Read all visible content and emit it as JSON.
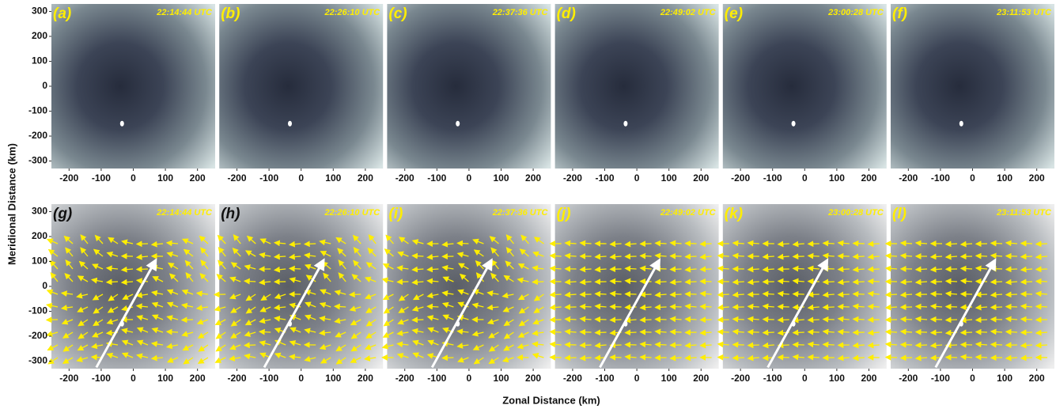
{
  "figure": {
    "y_label": "Meridional Distance (km)",
    "x_label": "Zonal Distance (km)",
    "xlim": [
      -255,
      255
    ],
    "ylim": [
      -330,
      330
    ],
    "xticks": [
      -200,
      -100,
      0,
      100,
      200
    ],
    "yticks": [
      300,
      200,
      100,
      0,
      -100,
      -200,
      -300
    ],
    "panels": [
      {
        "label": "(a)",
        "time": "22:14:44 UTC",
        "label_color": "#ffee00"
      },
      {
        "label": "(b)",
        "time": "22:26:10 UTC",
        "label_color": "#ffee00"
      },
      {
        "label": "(c)",
        "time": "22:37:36 UTC",
        "label_color": "#ffee00"
      },
      {
        "label": "(d)",
        "time": "22:49:02 UTC",
        "label_color": "#ffee00"
      },
      {
        "label": "(e)",
        "time": "23:00:28 UTC",
        "label_color": "#ffee00"
      },
      {
        "label": "(f)",
        "time": "23:11:53 UTC",
        "label_color": "#ffee00"
      },
      {
        "label": "(g)",
        "time": "22:14:44 UTC",
        "label_color": "#111111"
      },
      {
        "label": "(h)",
        "time": "22:26:10 UTC",
        "label_color": "#111111"
      },
      {
        "label": "(i)",
        "time": "22:37:36 UTC",
        "label_color": "#ffee00"
      },
      {
        "label": "(j)",
        "time": "22:49:02 UTC",
        "label_color": "#ffee00"
      },
      {
        "label": "(k)",
        "time": "23:00:28 UTC",
        "label_color": "#ffee00"
      },
      {
        "label": "(l)",
        "time": "23:11:53 UTC",
        "label_color": "#ffee00"
      }
    ]
  }
}
